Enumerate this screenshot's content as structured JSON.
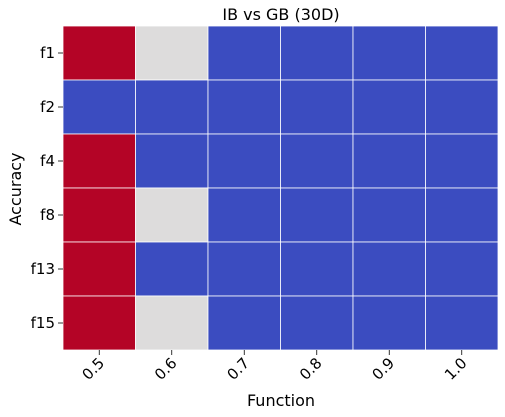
{
  "chart_data": {
    "type": "heatmap",
    "title": "IB vs GB (30D)",
    "xlabel": "Function",
    "ylabel": "Accuracy",
    "x_categories": [
      "0.5",
      "0.6",
      "0.7",
      "0.8",
      "0.9",
      "1.0"
    ],
    "y_categories": [
      "f1",
      "f2",
      "f4",
      "f8",
      "f13",
      "f15"
    ],
    "values": [
      [
        1,
        0,
        -1,
        -1,
        -1,
        -1
      ],
      [
        -1,
        -1,
        -1,
        -1,
        -1,
        -1
      ],
      [
        1,
        -1,
        -1,
        -1,
        -1,
        -1
      ],
      [
        1,
        0,
        -1,
        -1,
        -1,
        -1
      ],
      [
        1,
        -1,
        -1,
        -1,
        -1,
        -1
      ],
      [
        1,
        0,
        -1,
        -1,
        -1,
        -1
      ]
    ],
    "colormap": {
      "1": "#b40426",
      "0": "#dddcdc",
      "-1": "#3b4cc0"
    },
    "grid_line_color": "#ffffff",
    "legend": "none"
  }
}
